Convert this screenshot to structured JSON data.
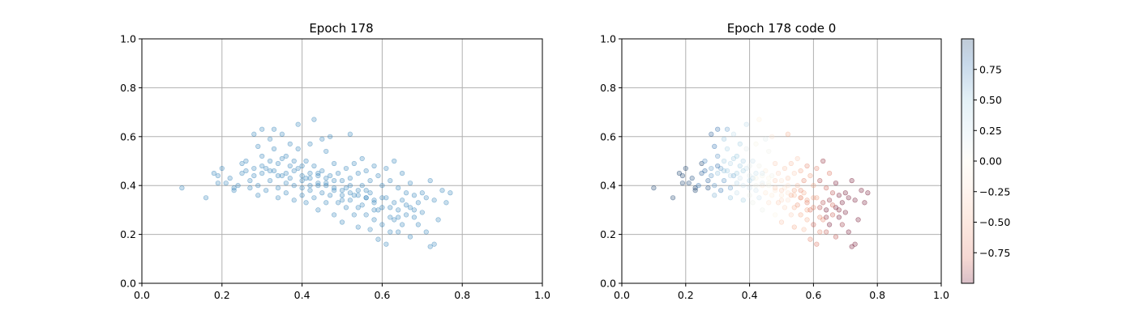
{
  "chart_data": [
    {
      "type": "scatter",
      "title": "Epoch 178",
      "xlabel": "",
      "ylabel": "",
      "xlim": [
        0,
        1
      ],
      "ylim": [
        0,
        1
      ],
      "xticks": [
        "0.0",
        "0.2",
        "0.4",
        "0.6",
        "0.8",
        "1.0"
      ],
      "yticks": [
        "0.0",
        "0.2",
        "0.4",
        "0.6",
        "0.8",
        "1.0"
      ],
      "grid": true,
      "point_color": "#1f77b4",
      "point_alpha": 0.25,
      "points": [
        [
          0.1,
          0.39
        ],
        [
          0.16,
          0.35
        ],
        [
          0.18,
          0.45
        ],
        [
          0.19,
          0.44
        ],
        [
          0.19,
          0.41
        ],
        [
          0.2,
          0.47
        ],
        [
          0.21,
          0.41
        ],
        [
          0.22,
          0.43
        ],
        [
          0.23,
          0.39
        ],
        [
          0.23,
          0.38
        ],
        [
          0.24,
          0.4
        ],
        [
          0.25,
          0.45
        ],
        [
          0.25,
          0.49
        ],
        [
          0.26,
          0.46
        ],
        [
          0.26,
          0.5
        ],
        [
          0.27,
          0.42
        ],
        [
          0.27,
          0.39
        ],
        [
          0.28,
          0.44
        ],
        [
          0.28,
          0.47
        ],
        [
          0.28,
          0.61
        ],
        [
          0.29,
          0.56
        ],
        [
          0.29,
          0.36
        ],
        [
          0.29,
          0.4
        ],
        [
          0.3,
          0.63
        ],
        [
          0.3,
          0.52
        ],
        [
          0.3,
          0.45
        ],
        [
          0.31,
          0.47
        ],
        [
          0.31,
          0.38
        ],
        [
          0.32,
          0.59
        ],
        [
          0.32,
          0.5
        ],
        [
          0.32,
          0.42
        ],
        [
          0.33,
          0.63
        ],
        [
          0.33,
          0.55
        ],
        [
          0.33,
          0.46
        ],
        [
          0.34,
          0.39
        ],
        [
          0.34,
          0.35
        ],
        [
          0.35,
          0.61
        ],
        [
          0.35,
          0.51
        ],
        [
          0.35,
          0.44
        ],
        [
          0.36,
          0.41
        ],
        [
          0.36,
          0.37
        ],
        [
          0.37,
          0.57
        ],
        [
          0.37,
          0.48
        ],
        [
          0.37,
          0.43
        ],
        [
          0.38,
          0.4
        ],
        [
          0.38,
          0.34
        ],
        [
          0.39,
          0.65
        ],
        [
          0.39,
          0.55
        ],
        [
          0.39,
          0.47
        ],
        [
          0.4,
          0.42
        ],
        [
          0.4,
          0.39
        ],
        [
          0.4,
          0.36
        ],
        [
          0.41,
          0.5
        ],
        [
          0.41,
          0.43
        ],
        [
          0.41,
          0.33
        ],
        [
          0.42,
          0.57
        ],
        [
          0.42,
          0.45
        ],
        [
          0.42,
          0.38
        ],
        [
          0.43,
          0.67
        ],
        [
          0.43,
          0.48
        ],
        [
          0.43,
          0.35
        ],
        [
          0.44,
          0.44
        ],
        [
          0.44,
          0.4
        ],
        [
          0.44,
          0.3
        ],
        [
          0.45,
          0.59
        ],
        [
          0.45,
          0.46
        ],
        [
          0.45,
          0.37
        ],
        [
          0.46,
          0.54
        ],
        [
          0.46,
          0.41
        ],
        [
          0.46,
          0.33
        ],
        [
          0.47,
          0.6
        ],
        [
          0.47,
          0.44
        ],
        [
          0.47,
          0.36
        ],
        [
          0.48,
          0.49
        ],
        [
          0.48,
          0.38
        ],
        [
          0.48,
          0.28
        ],
        [
          0.49,
          0.45
        ],
        [
          0.49,
          0.33
        ],
        [
          0.5,
          0.42
        ],
        [
          0.5,
          0.36
        ],
        [
          0.5,
          0.25
        ],
        [
          0.51,
          0.47
        ],
        [
          0.51,
          0.39
        ],
        [
          0.51,
          0.31
        ],
        [
          0.52,
          0.61
        ],
        [
          0.52,
          0.43
        ],
        [
          0.52,
          0.34
        ],
        [
          0.53,
          0.49
        ],
        [
          0.53,
          0.36
        ],
        [
          0.53,
          0.28
        ],
        [
          0.54,
          0.45
        ],
        [
          0.54,
          0.38
        ],
        [
          0.54,
          0.23
        ],
        [
          0.55,
          0.51
        ],
        [
          0.55,
          0.4
        ],
        [
          0.55,
          0.32
        ],
        [
          0.56,
          0.46
        ],
        [
          0.56,
          0.35
        ],
        [
          0.56,
          0.28
        ],
        [
          0.57,
          0.42
        ],
        [
          0.57,
          0.37
        ],
        [
          0.57,
          0.22
        ],
        [
          0.58,
          0.48
        ],
        [
          0.58,
          0.33
        ],
        [
          0.58,
          0.26
        ],
        [
          0.59,
          0.44
        ],
        [
          0.59,
          0.3
        ],
        [
          0.59,
          0.18
        ],
        [
          0.6,
          0.4
        ],
        [
          0.6,
          0.31
        ],
        [
          0.6,
          0.24
        ],
        [
          0.61,
          0.47
        ],
        [
          0.61,
          0.35
        ],
        [
          0.61,
          0.16
        ],
        [
          0.62,
          0.42
        ],
        [
          0.62,
          0.27
        ],
        [
          0.62,
          0.21
        ],
        [
          0.63,
          0.5
        ],
        [
          0.63,
          0.33
        ],
        [
          0.63,
          0.26
        ],
        [
          0.64,
          0.39
        ],
        [
          0.64,
          0.3
        ],
        [
          0.64,
          0.21
        ],
        [
          0.65,
          0.45
        ],
        [
          0.65,
          0.34
        ],
        [
          0.65,
          0.24
        ],
        [
          0.66,
          0.37
        ],
        [
          0.66,
          0.28
        ],
        [
          0.67,
          0.41
        ],
        [
          0.67,
          0.31
        ],
        [
          0.67,
          0.19
        ],
        [
          0.68,
          0.36
        ],
        [
          0.68,
          0.27
        ],
        [
          0.69,
          0.33
        ],
        [
          0.69,
          0.24
        ],
        [
          0.7,
          0.37
        ],
        [
          0.7,
          0.29
        ],
        [
          0.71,
          0.35
        ],
        [
          0.71,
          0.21
        ],
        [
          0.72,
          0.42
        ],
        [
          0.72,
          0.15
        ],
        [
          0.73,
          0.34
        ],
        [
          0.73,
          0.16
        ],
        [
          0.74,
          0.26
        ],
        [
          0.75,
          0.38
        ],
        [
          0.76,
          0.33
        ],
        [
          0.77,
          0.37
        ],
        [
          0.34,
          0.44
        ],
        [
          0.36,
          0.45
        ],
        [
          0.38,
          0.46
        ],
        [
          0.4,
          0.44
        ],
        [
          0.42,
          0.43
        ],
        [
          0.44,
          0.41
        ],
        [
          0.46,
          0.4
        ],
        [
          0.48,
          0.39
        ],
        [
          0.5,
          0.38
        ],
        [
          0.52,
          0.37
        ],
        [
          0.54,
          0.36
        ],
        [
          0.56,
          0.35
        ],
        [
          0.58,
          0.34
        ],
        [
          0.3,
          0.48
        ],
        [
          0.32,
          0.46
        ],
        [
          0.34,
          0.49
        ],
        [
          0.36,
          0.52
        ],
        [
          0.38,
          0.5
        ],
        [
          0.4,
          0.48
        ],
        [
          0.42,
          0.4
        ],
        [
          0.44,
          0.45
        ],
        [
          0.46,
          0.43
        ],
        [
          0.48,
          0.42
        ],
        [
          0.5,
          0.34
        ],
        [
          0.52,
          0.4
        ],
        [
          0.54,
          0.31
        ],
        [
          0.56,
          0.38
        ],
        [
          0.58,
          0.3
        ],
        [
          0.6,
          0.35
        ],
        [
          0.62,
          0.31
        ],
        [
          0.64,
          0.27
        ],
        [
          0.66,
          0.32
        ],
        [
          0.68,
          0.3
        ]
      ]
    },
    {
      "type": "scatter",
      "title": "Epoch 178 code 0",
      "xlabel": "",
      "ylabel": "",
      "xlim": [
        0,
        1
      ],
      "ylim": [
        0,
        1
      ],
      "xticks": [
        "0.0",
        "0.2",
        "0.4",
        "0.6",
        "0.8",
        "1.0"
      ],
      "yticks": [
        "0.0",
        "0.2",
        "0.4",
        "0.6",
        "0.8",
        "1.0"
      ],
      "grid": true,
      "point_alpha": 0.25,
      "colormap": "RdBu",
      "colorbar": {
        "range": [
          -1.0,
          1.0
        ],
        "ticks": [
          0.75,
          0.5,
          0.25,
          0.0,
          -0.25,
          -0.5,
          -0.75
        ],
        "tick_labels": [
          "0.75",
          "0.50",
          "0.25",
          "0.00",
          "−0.25",
          "−0.50",
          "−0.75"
        ],
        "top_color": "#053061",
        "mid_color": "#f7f7f7",
        "bottom_color": "#67001f"
      },
      "points_same_as_first": true
    }
  ]
}
